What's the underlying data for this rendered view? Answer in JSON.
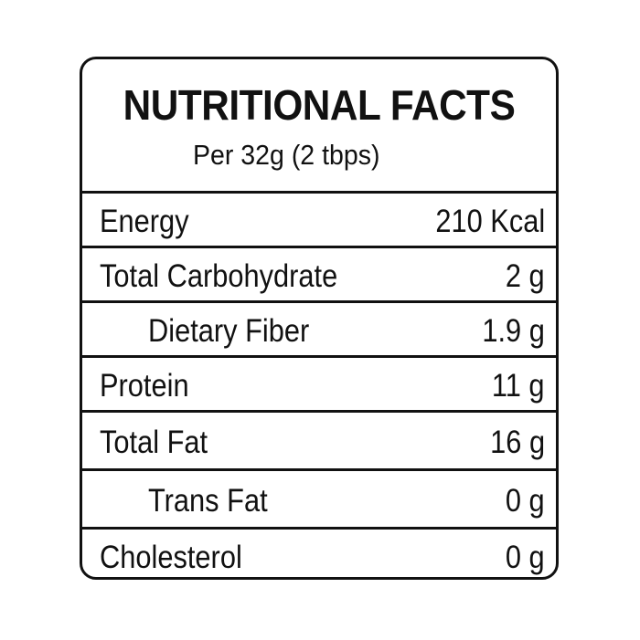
{
  "label": {
    "title": "NUTRITIONAL FACTS",
    "serving": "Per 32g (2 tbps)",
    "rows": [
      {
        "name": "Energy",
        "value": "210 Kcal"
      },
      {
        "name": "Total Carbohydrate",
        "value": "2 g"
      },
      {
        "name": "Dietary Fiber",
        "value": "1.9 g"
      },
      {
        "name": "Protein",
        "value": "11 g"
      },
      {
        "name": "Total Fat",
        "value": "16 g"
      },
      {
        "name": "Trans Fat",
        "value": "0 g"
      },
      {
        "name": "Cholesterol",
        "value": "0 g"
      }
    ]
  }
}
